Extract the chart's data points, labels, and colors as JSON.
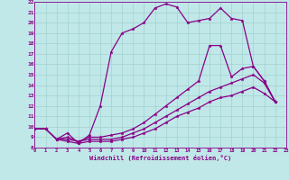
{
  "xlabel": "Windchill (Refroidissement éolien,°C)",
  "xlim": [
    0,
    23
  ],
  "ylim": [
    8,
    22
  ],
  "xticks": [
    0,
    1,
    2,
    3,
    4,
    5,
    6,
    7,
    8,
    9,
    10,
    11,
    12,
    13,
    14,
    15,
    16,
    17,
    18,
    19,
    20,
    21,
    22,
    23
  ],
  "yticks": [
    8,
    9,
    10,
    11,
    12,
    13,
    14,
    15,
    16,
    17,
    18,
    19,
    20,
    21,
    22
  ],
  "background_color": "#c0e8e8",
  "grid_color": "#a8d4d4",
  "line_color": "#880088",
  "series": [
    {
      "x": [
        0,
        1,
        2,
        3,
        4,
        5,
        6,
        7,
        8,
        9,
        10,
        11,
        12,
        13,
        14,
        15,
        16,
        17,
        18,
        19,
        20,
        21,
        22
      ],
      "y": [
        9.8,
        9.8,
        8.8,
        9.4,
        8.4,
        9.2,
        12.0,
        17.2,
        19.0,
        19.4,
        20.0,
        21.4,
        21.8,
        21.5,
        20.0,
        20.2,
        20.4,
        21.4,
        20.4,
        20.2,
        15.8,
        14.4,
        12.4
      ]
    },
    {
      "x": [
        0,
        1,
        2,
        3,
        4,
        5,
        6,
        7,
        8,
        9,
        10,
        11,
        12,
        13,
        14,
        15,
        16,
        17,
        18,
        19,
        20,
        21,
        22
      ],
      "y": [
        9.8,
        9.8,
        8.8,
        9.0,
        8.6,
        9.0,
        9.0,
        9.2,
        9.4,
        9.8,
        10.4,
        11.2,
        12.0,
        12.8,
        13.6,
        14.4,
        17.8,
        17.8,
        14.8,
        15.6,
        15.8,
        14.4,
        12.4
      ]
    },
    {
      "x": [
        0,
        1,
        2,
        3,
        4,
        5,
        6,
        7,
        8,
        9,
        10,
        11,
        12,
        13,
        14,
        15,
        16,
        17,
        18,
        19,
        20,
        21,
        22
      ],
      "y": [
        9.8,
        9.8,
        8.8,
        8.8,
        8.6,
        8.8,
        8.8,
        8.8,
        9.0,
        9.4,
        9.8,
        10.4,
        11.0,
        11.6,
        12.2,
        12.8,
        13.4,
        13.8,
        14.2,
        14.6,
        15.0,
        14.2,
        12.4
      ]
    },
    {
      "x": [
        0,
        1,
        2,
        3,
        4,
        5,
        6,
        7,
        8,
        9,
        10,
        11,
        12,
        13,
        14,
        15,
        16,
        17,
        18,
        19,
        20,
        21,
        22
      ],
      "y": [
        9.8,
        9.8,
        8.8,
        8.6,
        8.4,
        8.6,
        8.6,
        8.6,
        8.8,
        9.0,
        9.4,
        9.8,
        10.4,
        11.0,
        11.4,
        11.8,
        12.4,
        12.8,
        13.0,
        13.4,
        13.8,
        13.2,
        12.4
      ]
    }
  ]
}
